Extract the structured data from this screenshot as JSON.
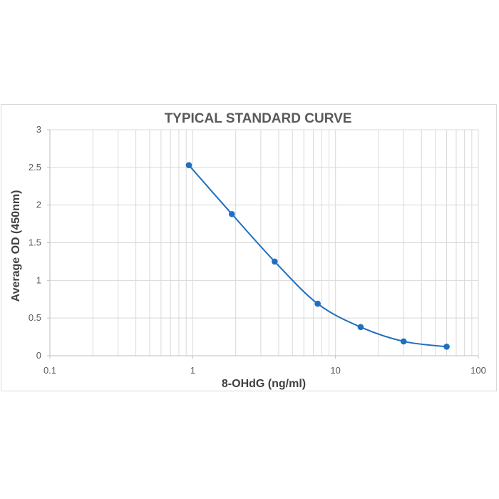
{
  "chart_data": {
    "type": "scatter",
    "title": "TYPICAL STANDARD CURVE",
    "xlabel": "8-OHdG (ng/ml)",
    "ylabel": "Average OD (450nm)",
    "x_scale": "log",
    "xlim": [
      0.1,
      100
    ],
    "ylim": [
      0,
      3
    ],
    "x_ticks": [
      "0.1",
      "1",
      "10",
      "100"
    ],
    "y_ticks": [
      "0",
      "0.5",
      "1",
      "1.5",
      "2",
      "2.5",
      "3"
    ],
    "grid": true,
    "legend": "none",
    "series": [
      {
        "color": "#1f6fbf",
        "line": "smooth",
        "x": [
          0.94,
          1.88,
          3.75,
          7.5,
          15,
          30,
          60
        ],
        "y": [
          2.53,
          1.88,
          1.25,
          0.69,
          0.38,
          0.19,
          0.12
        ]
      }
    ]
  }
}
